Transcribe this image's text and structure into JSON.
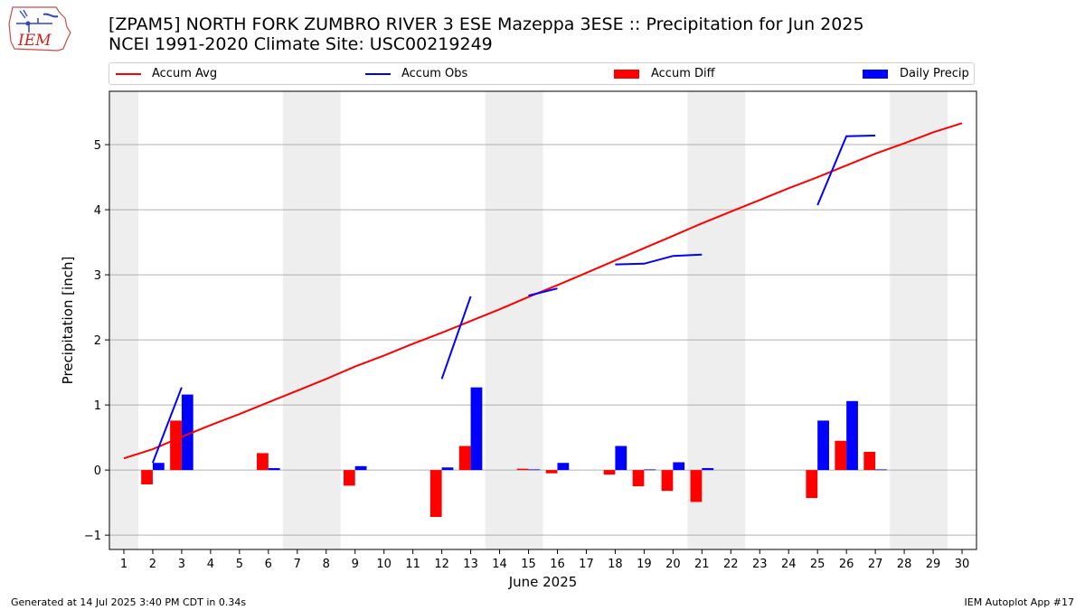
{
  "header": {
    "logo_text": "IEM",
    "title_line1": "[ZPAM5] NORTH FORK ZUMBRO RIVER 3 ESE Mazeppa 3ESE :: Precipitation for Jun 2025",
    "title_line2": "NCEI 1991-2020 Climate Site: USC00219249"
  },
  "legend": {
    "items": [
      {
        "label": "Accum Avg",
        "kind": "line",
        "color": "#ff0000"
      },
      {
        "label": "Accum Obs",
        "kind": "line",
        "color": "#0000ff"
      },
      {
        "label": "Accum Diff",
        "kind": "bar",
        "color": "#ff0000"
      },
      {
        "label": "Daily Precip",
        "kind": "bar",
        "color": "#0000ff"
      }
    ]
  },
  "chart_data": {
    "type": "bar",
    "xlabel": "June 2025",
    "ylabel": "Precipitation [inch]",
    "xlim": [
      0.5,
      30.5
    ],
    "ylim": [
      -1.22,
      5.82
    ],
    "yticks": [
      -1,
      0,
      1,
      2,
      3,
      4,
      5
    ],
    "x": [
      1,
      2,
      3,
      4,
      5,
      6,
      7,
      8,
      9,
      10,
      11,
      12,
      13,
      14,
      15,
      16,
      17,
      18,
      19,
      20,
      21,
      22,
      23,
      24,
      25,
      26,
      27,
      28,
      29,
      30
    ],
    "weekend_spans": [
      [
        0.5,
        1.5
      ],
      [
        6.5,
        8.5
      ],
      [
        13.5,
        15.5
      ],
      [
        20.5,
        22.5
      ],
      [
        27.5,
        29.5
      ]
    ],
    "grid": "horizontal",
    "legend_position": "top",
    "series": [
      {
        "name": "Accum Avg",
        "kind": "line",
        "color": "#ff0000",
        "values": [
          0.18,
          0.32,
          0.51,
          0.69,
          0.86,
          1.04,
          1.22,
          1.4,
          1.59,
          1.76,
          1.94,
          2.11,
          2.29,
          2.47,
          2.66,
          2.84,
          3.03,
          3.22,
          3.41,
          3.6,
          3.79,
          3.97,
          4.15,
          4.33,
          4.5,
          4.68,
          4.86,
          5.02,
          5.19,
          5.33
        ]
      },
      {
        "name": "Accum Obs",
        "kind": "line",
        "color": "#0000ff",
        "values": [
          null,
          0.11,
          1.27,
          null,
          null,
          null,
          null,
          null,
          null,
          null,
          null,
          1.4,
          2.67,
          null,
          2.68,
          2.79,
          null,
          3.16,
          3.17,
          3.29,
          3.31,
          null,
          null,
          null,
          4.07,
          5.13,
          5.14,
          null,
          null,
          null
        ]
      },
      {
        "name": "Accum Diff",
        "kind": "bar",
        "color": "#ff0000",
        "values": [
          null,
          -0.22,
          0.76,
          null,
          null,
          0.26,
          null,
          null,
          -0.24,
          null,
          null,
          -0.72,
          0.37,
          null,
          0.02,
          -0.05,
          null,
          -0.07,
          -0.25,
          -0.32,
          -0.49,
          null,
          null,
          null,
          -0.43,
          0.45,
          0.28,
          null,
          null,
          null
        ]
      },
      {
        "name": "Daily Precip",
        "kind": "bar",
        "color": "#0000ff",
        "values": [
          null,
          0.11,
          1.16,
          null,
          null,
          0.03,
          null,
          null,
          0.06,
          null,
          null,
          0.04,
          1.27,
          null,
          0.01,
          0.11,
          null,
          0.37,
          0.01,
          0.12,
          0.03,
          null,
          null,
          null,
          0.76,
          1.06,
          0.01,
          null,
          null,
          null
        ]
      }
    ]
  },
  "footer": {
    "generated": "Generated at 14 Jul 2025 3:40 PM CDT in 0.34s",
    "app": "IEM Autoplot App #17"
  }
}
